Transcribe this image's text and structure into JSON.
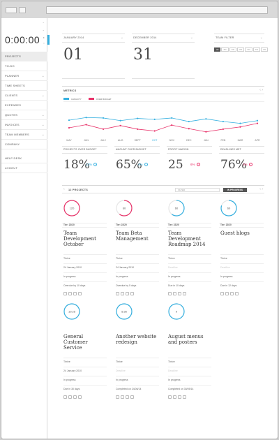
{
  "timer": {
    "value": "0:00:00"
  },
  "sidebar": {
    "items": [
      {
        "label": "Projects",
        "chevron": false,
        "active": true
      },
      {
        "label": "To-do",
        "chevron": false
      },
      {
        "label": "Planner",
        "chevron": true
      },
      {
        "label": "Time sheets",
        "chevron": false
      },
      {
        "label": "Clients",
        "chevron": true
      },
      {
        "label": "Expenses",
        "chevron": false
      },
      {
        "label": "Quotes",
        "chevron": true
      },
      {
        "label": "Invoices",
        "chevron": true
      },
      {
        "label": "Team members",
        "chevron": true
      },
      {
        "label": "Company",
        "chevron": false
      }
    ],
    "bottom_items": [
      {
        "label": "Help desk"
      },
      {
        "label": "Logout"
      }
    ]
  },
  "dates": {
    "start_label": "January 2014",
    "start_day": "01",
    "end_label": "December 2014",
    "end_day": "31"
  },
  "team_filter": {
    "label": "Team filter",
    "options": [
      "All",
      "AG",
      "AG",
      "AG",
      "AG",
      "AG",
      "AG"
    ]
  },
  "metrics": {
    "title": "Metrics",
    "legend": [
      {
        "name": "Capacity",
        "color": "#35b0e0"
      },
      {
        "name": "Over budget",
        "color": "#e8336a"
      }
    ]
  },
  "chart_data": {
    "type": "line",
    "categories": [
      "May",
      "Jun",
      "July",
      "Aug",
      "Sept",
      "Oct",
      "Nov",
      "Dec",
      "Jan",
      "Feb",
      "Mar",
      "Apr"
    ],
    "highlight_category": "Oct",
    "series": [
      {
        "name": "Capacity",
        "color": "#35b0e0",
        "values": [
          67,
          73,
          72,
          66,
          71,
          69,
          72,
          64,
          70,
          64,
          60,
          66
        ]
      },
      {
        "name": "Over budget",
        "color": "#e8336a",
        "values": [
          50,
          57,
          47,
          55,
          47,
          43,
          56,
          48,
          41,
          47,
          52,
          60
        ]
      }
    ],
    "ylim": [
      0,
      100
    ],
    "grid": false
  },
  "stats": [
    {
      "label": "Projects over budget",
      "value": "18%",
      "delta": "12%",
      "direction": "up",
      "color": "#35b0e0"
    },
    {
      "label": "Amount over budget",
      "value": "65%",
      "delta": "4%",
      "direction": "up",
      "color": "#35b0e0"
    },
    {
      "label": "Profit margin",
      "value": "25",
      "delta": "6%",
      "direction": "down",
      "color": "#e8336a"
    },
    {
      "label": "Deadlines met",
      "value": "76%",
      "delta": "3%",
      "direction": "down",
      "color": "#e8336a"
    }
  ],
  "projects": {
    "title": "12 Projects",
    "filter_placeholder": "Filter",
    "status": "In progress",
    "cards": [
      {
        "ring_text": "120",
        "ring_color": "#e8336a",
        "progress": 1.0,
        "tier": "Tier: 22/20",
        "title": "Team Development October",
        "client": "Thrive",
        "date": "24 January 2010",
        "status": "In progress",
        "due": "Overdue by 10 days"
      },
      {
        "ring_text": "60",
        "ring_color": "#e8336a",
        "progress": 0.6,
        "tier": "Tier: 22/20",
        "title": "Team Beta Management",
        "client": "Thrive",
        "date": "24 January 2010",
        "status": "In progress",
        "due": "Overdue by 5 days"
      },
      {
        "ring_text": "60",
        "ring_color": "#35b0e0",
        "progress": 0.6,
        "tier": "Tier: 22/20",
        "title": "Team Development Roadmap 2014",
        "client": "Thrive",
        "date": "Deadline",
        "date_muted": true,
        "status": "In progress",
        "due": "Due in 10 days"
      },
      {
        "ring_text": "60",
        "ring_color": "#35b0e0",
        "progress": 0.8,
        "tier": "Tier: 22/20",
        "title": "Guest blogs",
        "client": "Thrive",
        "date": "Deadline",
        "date_muted": true,
        "status": "In progress",
        "due": "Due in 12 days"
      },
      {
        "ring_text": "10:25",
        "ring_color": "#35b0e0",
        "progress": 1.0,
        "tier": "",
        "title": "General Customer Service",
        "client": "Thrive",
        "date": "24 January 2010",
        "status": "In progress",
        "due": "Due in 30 days"
      },
      {
        "ring_text": "5:36",
        "ring_color": "#35b0e0",
        "progress": 1.0,
        "tier": "",
        "title": "Another website redesign",
        "client": "Thrive",
        "date": "Deadline",
        "date_muted": true,
        "status": "In progress",
        "due": "Completed on 24/06/14"
      },
      {
        "ring_text": "0",
        "ring_color": "#35b0e0",
        "progress": 1.0,
        "tier": "",
        "title": "August menus and posters",
        "client": "Thrive",
        "date": "Deadline",
        "date_muted": true,
        "status": "In progress",
        "due": "Completed on 30/05/14"
      }
    ]
  }
}
